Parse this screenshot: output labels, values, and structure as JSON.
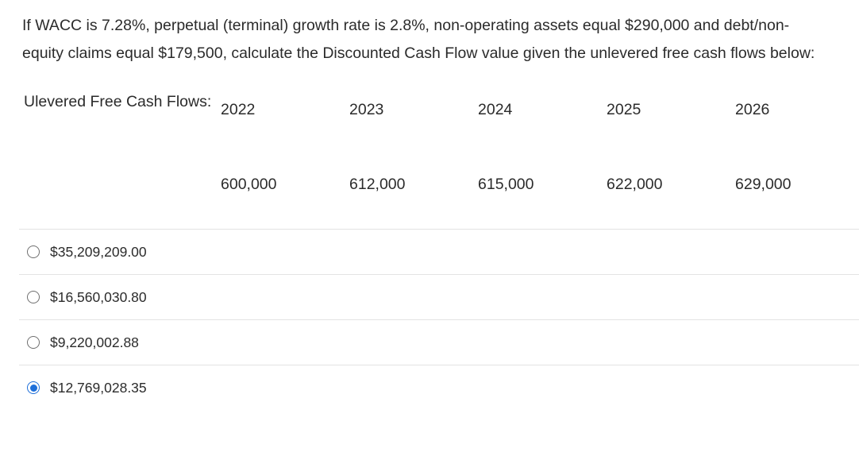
{
  "question": {
    "text": "If WACC is 7.28%, perpetual (terminal) growth rate is 2.8%, non-operating assets equal $290,000 and debt/non-equity claims equal $179,500, calculate the Discounted Cash Flow value given the unlevered free cash flows below:"
  },
  "table": {
    "row_label": "Ulevered Free Cash Flows:",
    "years": [
      "2022",
      "2023",
      "2024",
      "2025",
      "2026"
    ],
    "values": [
      "600,000",
      "612,000",
      "615,000",
      "622,000",
      "629,000"
    ]
  },
  "options": [
    {
      "label": "$35,209,209.00",
      "selected": false
    },
    {
      "label": "$16,560,030.80",
      "selected": false
    },
    {
      "label": "$9,220,002.88",
      "selected": false
    },
    {
      "label": "$12,769,028.35",
      "selected": true
    }
  ],
  "colors": {
    "accent": "#1e6fd9",
    "text": "#2b2b2b",
    "divider": "#e3e3e3"
  }
}
